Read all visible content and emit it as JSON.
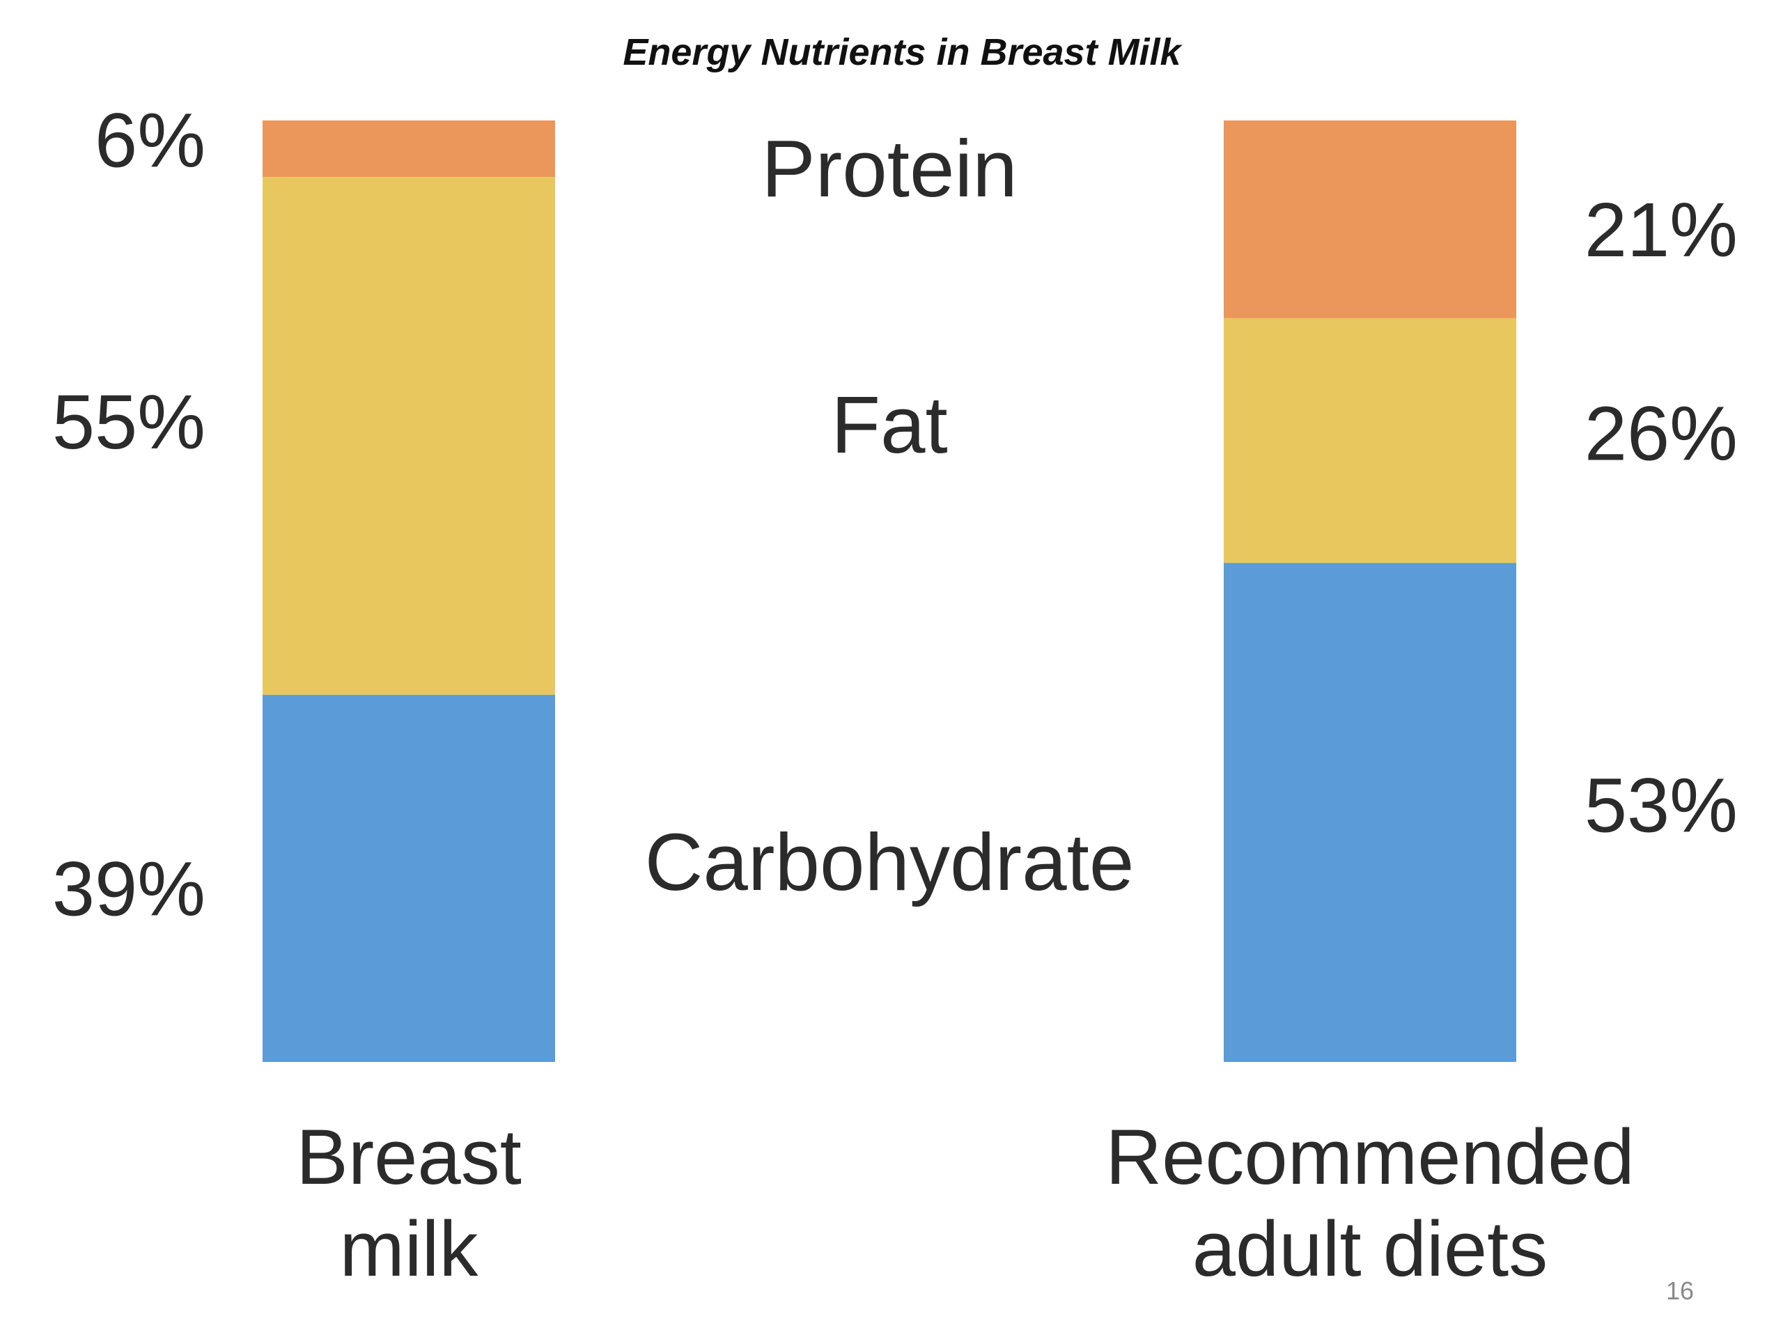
{
  "slide": {
    "page_number": "16"
  },
  "chart_data": {
    "type": "bar",
    "stacked": true,
    "title": "Energy Nutrients in Breast Milk",
    "categories": [
      [
        "Breast",
        "milk"
      ],
      [
        "Recommended",
        "adult diets"
      ]
    ],
    "series": [
      {
        "name": "Carbohydrate",
        "values": [
          39,
          53
        ],
        "labels": [
          "39%",
          "53%"
        ],
        "color": "#5a9bd8"
      },
      {
        "name": "Fat",
        "values": [
          55,
          26
        ],
        "labels": [
          "55%",
          "26%"
        ],
        "color": "#e8c85e"
      },
      {
        "name": "Protein",
        "values": [
          6,
          21
        ],
        "labels": [
          "6%",
          "21%"
        ],
        "color": "#eb965a"
      }
    ],
    "ylim": [
      0,
      100
    ],
    "grid": false,
    "legend": "center"
  }
}
